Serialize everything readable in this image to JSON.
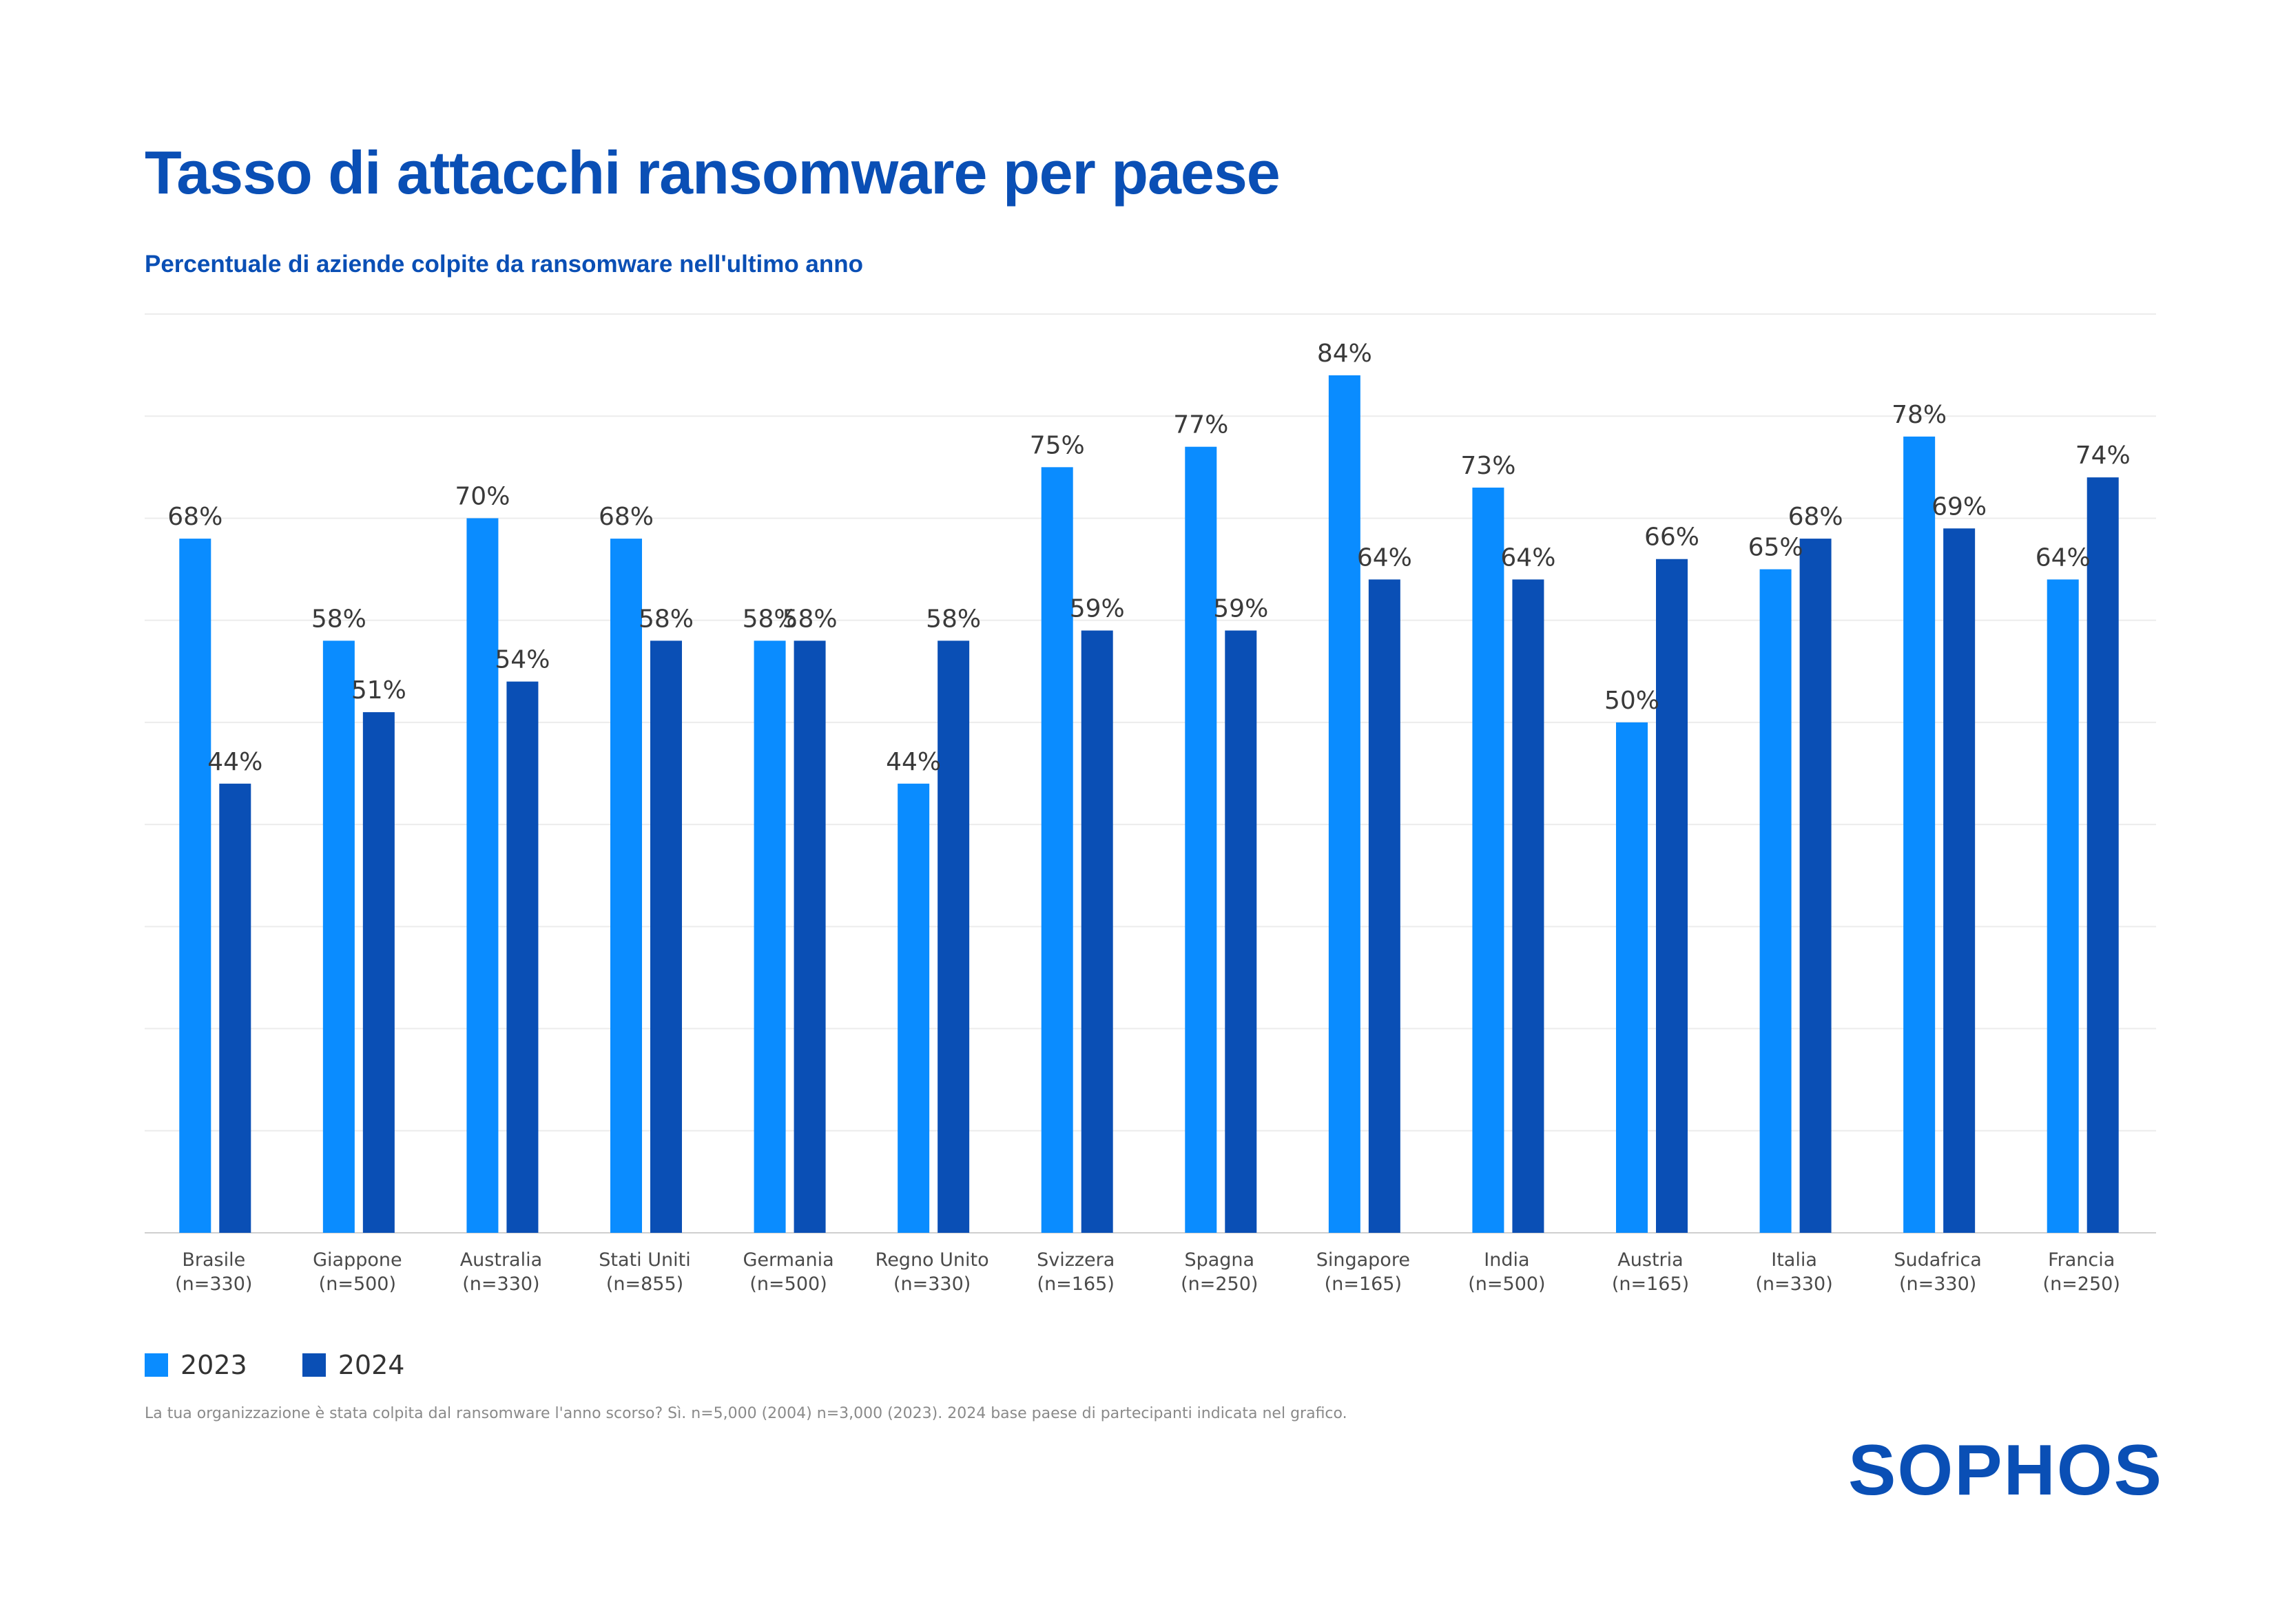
{
  "title": "Tasso di attacchi ransomware per paese",
  "subtitle": "Percentuale di aziende colpite da ransomware nell'ultimo anno",
  "legend": [
    {
      "label": "2023",
      "color": "#0a8cff"
    },
    {
      "label": "2024",
      "color": "#0a4fb5"
    }
  ],
  "footnote": "La tua organizzazione è stata colpita dal ransomware l'anno scorso? Sì. n=5,000 (2004) n=3,000 (2023). 2024 base paese di partecipanti indicata nel grafico.",
  "logo": "SOPHOS",
  "chart_data": {
    "type": "bar",
    "title": "Tasso di attacchi ransomware per paese",
    "ylim": [
      0,
      90
    ],
    "grid": true,
    "categories": [
      {
        "name": "Brasile",
        "n": "(n=330)"
      },
      {
        "name": "Giappone",
        "n": "(n=500)"
      },
      {
        "name": "Australia",
        "n": "(n=330)"
      },
      {
        "name": "Stati Uniti",
        "n": "(n=855)"
      },
      {
        "name": "Germania",
        "n": "(n=500)"
      },
      {
        "name": "Regno Unito",
        "n": "(n=330)"
      },
      {
        "name": "Svizzera",
        "n": "(n=165)"
      },
      {
        "name": "Spagna",
        "n": "(n=250)"
      },
      {
        "name": "Singapore",
        "n": "(n=165)"
      },
      {
        "name": "India",
        "n": "(n=500)"
      },
      {
        "name": "Austria",
        "n": "(n=165)"
      },
      {
        "name": "Italia",
        "n": "(n=330)"
      },
      {
        "name": "Sudafrica",
        "n": "(n=330)"
      },
      {
        "name": "Francia",
        "n": "(n=250)"
      }
    ],
    "series": [
      {
        "name": "2023",
        "color": "#0a8cff",
        "values": [
          68,
          58,
          70,
          68,
          58,
          44,
          75,
          77,
          84,
          73,
          50,
          65,
          78,
          64
        ]
      },
      {
        "name": "2024",
        "color": "#0a4fb5",
        "values": [
          44,
          51,
          54,
          58,
          58,
          58,
          59,
          59,
          64,
          64,
          66,
          68,
          69,
          74
        ]
      }
    ],
    "value_suffix": "%"
  }
}
